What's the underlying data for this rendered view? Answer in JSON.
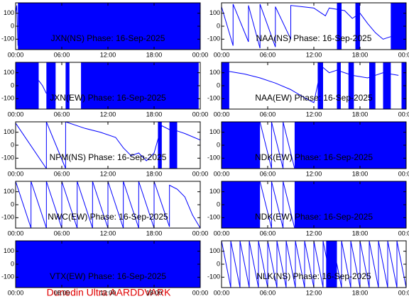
{
  "chart_data": [
    {
      "type": "line",
      "title": "JXN(NS) Phase: 16-Sep-2025",
      "x": [
        0,
        0.15,
        0.3
      ],
      "values": [
        100,
        160,
        -150
      ],
      "bands": [
        [
          0.3,
          24
        ]
      ],
      "color": "#0000ff",
      "xlim": [
        0,
        24
      ],
      "ylim": [
        -180,
        180
      ],
      "yticks": [
        -100,
        0,
        100
      ],
      "xticks": [
        {
          "value": 0,
          "label": "00:00"
        },
        {
          "value": 6,
          "label": "06:00"
        },
        {
          "value": 12,
          "label": "12:00"
        },
        {
          "value": 18,
          "label": "18:00"
        },
        {
          "value": 24,
          "label": "00:00"
        }
      ]
    },
    {
      "type": "line",
      "title": "NAA(NS) Phase: 16-Sep-2025",
      "x": [
        0,
        1.5,
        1.5,
        3.5,
        3.5,
        5,
        5,
        7,
        7,
        9,
        9,
        10.5,
        12,
        13,
        13.5,
        14,
        16,
        17,
        18,
        19,
        20,
        21,
        22
      ],
      "values": [
        150,
        -150,
        170,
        -120,
        160,
        -170,
        170,
        -160,
        150,
        -100,
        160,
        150,
        140,
        100,
        80,
        140,
        120,
        60,
        100,
        20,
        -50,
        -100,
        -80
      ],
      "bands": [
        [
          15,
          15.6
        ],
        [
          17.4,
          18
        ],
        [
          22,
          24
        ]
      ],
      "color": "#0000ff",
      "xlim": [
        0,
        24
      ],
      "ylim": [
        -180,
        180
      ],
      "yticks": [
        -100,
        0,
        100
      ],
      "xticks": [
        {
          "value": 0,
          "label": "00:00"
        },
        {
          "value": 6,
          "label": "06:00"
        },
        {
          "value": 12,
          "label": "12:00"
        },
        {
          "value": 18,
          "label": "18:00"
        },
        {
          "value": 24,
          "label": "00:00"
        }
      ]
    },
    {
      "type": "line",
      "title": "JXN(EW) Phase: 16-Sep-2025",
      "x": [
        3,
        3.5,
        4
      ],
      "values": [
        40,
        0,
        -60
      ],
      "bands": [
        [
          0,
          3
        ],
        [
          4,
          5.2
        ],
        [
          6.5,
          7
        ],
        [
          8.5,
          23.8
        ]
      ],
      "color": "#0000ff",
      "xlim": [
        0,
        24
      ],
      "ylim": [
        -180,
        180
      ],
      "yticks": [
        -100,
        0,
        100
      ],
      "xticks": [
        {
          "value": 0,
          "label": "00:00"
        },
        {
          "value": 6,
          "label": "06:00"
        },
        {
          "value": 12,
          "label": "12:00"
        },
        {
          "value": 18,
          "label": "18:00"
        },
        {
          "value": 24,
          "label": "00:00"
        }
      ]
    },
    {
      "type": "line",
      "title": "NAA(EW) Phase: 16-Sep-2025",
      "x": [
        1,
        3,
        5,
        7,
        9,
        11,
        12,
        13,
        14,
        15,
        17,
        19,
        21,
        23
      ],
      "values": [
        110,
        90,
        60,
        20,
        -30,
        -100,
        -130,
        150,
        100,
        120,
        80,
        60,
        100,
        80
      ],
      "bands": [
        [
          0,
          1
        ],
        [
          12.5,
          13.2
        ],
        [
          15,
          15.5
        ],
        [
          16.5,
          17.2
        ],
        [
          19.2,
          20
        ],
        [
          21,
          22
        ],
        [
          23.4,
          24
        ]
      ],
      "color": "#0000ff",
      "xlim": [
        0,
        24
      ],
      "ylim": [
        -180,
        180
      ],
      "yticks": [
        -100,
        0,
        100
      ],
      "xticks": [
        {
          "value": 0,
          "label": "00:00"
        },
        {
          "value": 6,
          "label": "06:00"
        },
        {
          "value": 12,
          "label": "12:00"
        },
        {
          "value": 18,
          "label": "18:00"
        },
        {
          "value": 24,
          "label": "00:00"
        }
      ]
    },
    {
      "type": "line",
      "title": "NPM(NS) Phase: 16-Sep-2025",
      "x": [
        0,
        4,
        4,
        6.5,
        6.5,
        9,
        11,
        13,
        14,
        15,
        16,
        17,
        18,
        19,
        20,
        21,
        22,
        24
      ],
      "values": [
        170,
        -180,
        180,
        -180,
        180,
        130,
        100,
        60,
        -20,
        -80,
        -60,
        -120,
        -60,
        150,
        120,
        110,
        90,
        40
      ],
      "bands": [
        [
          18.5,
          19
        ],
        [
          20,
          21
        ]
      ],
      "color": "#0000ff",
      "xlim": [
        0,
        24
      ],
      "ylim": [
        -180,
        180
      ],
      "yticks": [
        -100,
        0,
        100
      ],
      "xticks": [
        {
          "value": 0,
          "label": "00:00"
        },
        {
          "value": 6,
          "label": "06:00"
        },
        {
          "value": 12,
          "label": "12:00"
        },
        {
          "value": 18,
          "label": "18:00"
        },
        {
          "value": 24,
          "label": "00:00"
        }
      ]
    },
    {
      "type": "line",
      "title": "NDK(EW) Phase: 16-Sep-2025",
      "x": [
        5,
        6.5,
        6.5,
        8,
        8,
        9.5
      ],
      "values": [
        180,
        -180,
        180,
        -180,
        180,
        -180
      ],
      "bands": [
        [
          0,
          5
        ],
        [
          9.5,
          24
        ]
      ],
      "color": "#0000ff",
      "xlim": [
        0,
        24
      ],
      "ylim": [
        -180,
        180
      ],
      "yticks": [
        -100,
        0,
        100
      ],
      "xticks": [
        {
          "value": 0,
          "label": "00:00"
        },
        {
          "value": 6,
          "label": "06:00"
        },
        {
          "value": 12,
          "label": "12:00"
        },
        {
          "value": 18,
          "label": "18:00"
        },
        {
          "value": 24,
          "label": "00:00"
        }
      ]
    },
    {
      "type": "line",
      "title": "NWC(EW) Phase: 16-Sep-2025",
      "x": [
        0,
        2,
        2,
        4,
        4,
        6,
        6,
        8,
        8,
        10,
        10,
        12,
        12,
        14,
        14,
        16,
        16,
        18,
        18,
        20,
        20,
        21,
        22,
        23,
        24
      ],
      "values": [
        180,
        -180,
        180,
        -180,
        180,
        -180,
        180,
        -180,
        180,
        -180,
        180,
        -180,
        180,
        -180,
        180,
        -180,
        180,
        -180,
        180,
        -170,
        150,
        120,
        60,
        -80,
        -180
      ],
      "bands": [],
      "color": "#0000ff",
      "xlim": [
        0,
        24
      ],
      "ylim": [
        -180,
        180
      ],
      "yticks": [
        -100,
        0,
        100
      ],
      "xticks": [
        {
          "value": 0,
          "label": "00:00"
        },
        {
          "value": 6,
          "label": "06:00"
        },
        {
          "value": 12,
          "label": "12:00"
        },
        {
          "value": 18,
          "label": "18:00"
        },
        {
          "value": 24,
          "label": "00:00"
        }
      ]
    },
    {
      "type": "line",
      "title": "NDK(EW) Phase: 16-Sep-2025",
      "x": [
        5,
        6.5,
        6.5,
        8,
        8,
        9.5
      ],
      "values": [
        180,
        -180,
        180,
        -180,
        180,
        -180
      ],
      "bands": [
        [
          0,
          5
        ],
        [
          9.5,
          24
        ]
      ],
      "color": "#0000ff",
      "xlim": [
        0,
        24
      ],
      "ylim": [
        -180,
        180
      ],
      "yticks": [
        -100,
        0,
        100
      ],
      "xticks": [
        {
          "value": 0,
          "label": "00:00"
        },
        {
          "value": 6,
          "label": "06:00"
        },
        {
          "value": 12,
          "label": "12:00"
        },
        {
          "value": 18,
          "label": "18:00"
        },
        {
          "value": 24,
          "label": "00:00"
        }
      ]
    },
    {
      "type": "line",
      "title": "VTX(EW) Phase: 16-Sep-2025",
      "x": [
        0,
        24
      ],
      "values": [
        0,
        0
      ],
      "bands": [
        [
          0,
          24
        ]
      ],
      "color": "#0000ff",
      "xlim": [
        0,
        24
      ],
      "ylim": [
        -180,
        180
      ],
      "yticks": [
        -100,
        0,
        100
      ],
      "xticks": [
        {
          "value": 0,
          "label": "00:00"
        },
        {
          "value": 6,
          "label": "06:00"
        },
        {
          "value": 12,
          "label": "12:00"
        },
        {
          "value": 18,
          "label": "18:00"
        },
        {
          "value": 24,
          "label": "00:00"
        }
      ]
    },
    {
      "type": "line",
      "title": "NLK(NS) Phase: 16-Sep-2025",
      "x": [
        0,
        1.2,
        1.2,
        2.4,
        2.4,
        3.6,
        3.6,
        4.8,
        4.8,
        6,
        6,
        7.2,
        7.2,
        8.4,
        8.4,
        9.6,
        9.6,
        10.8,
        10.8,
        12,
        12,
        13.2,
        13.2,
        14.4,
        14.4,
        15.6,
        15.6,
        16.8,
        16.8,
        18,
        18,
        19.2,
        19.2,
        20.4,
        20.4,
        21.6,
        21.6,
        22.8,
        22.8,
        24
      ],
      "values": [
        180,
        -180,
        180,
        -180,
        180,
        -180,
        180,
        -180,
        180,
        -180,
        180,
        -180,
        180,
        -180,
        180,
        -180,
        180,
        -180,
        180,
        -180,
        180,
        -180,
        180,
        -180,
        180,
        -180,
        180,
        -180,
        180,
        -180,
        180,
        -180,
        180,
        -180,
        180,
        -180,
        180,
        -180,
        180,
        -180
      ],
      "bands": [
        [
          13.6,
          15
        ]
      ],
      "color": "#0000ff",
      "xlim": [
        0,
        24
      ],
      "ylim": [
        -180,
        180
      ],
      "yticks": [
        -100,
        0,
        100
      ],
      "xticks": [
        {
          "value": 0,
          "label": "00:00"
        },
        {
          "value": 6,
          "label": "06:00"
        },
        {
          "value": 12,
          "label": "12:00"
        },
        {
          "value": 18,
          "label": "18:00"
        },
        {
          "value": 24,
          "label": "00:00"
        }
      ]
    }
  ],
  "caption": "Dunedin Ultra AARDDVARK"
}
